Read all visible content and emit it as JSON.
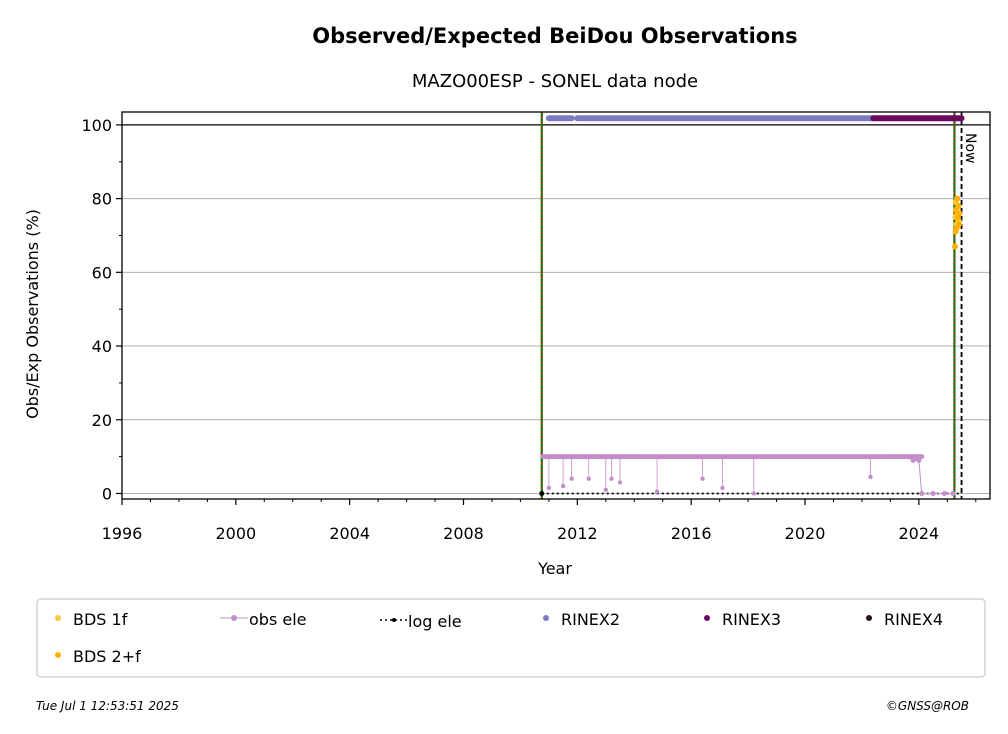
{
  "chart_data": {
    "type": "scatter",
    "title": "Observed/Expected BeiDou Observations",
    "subtitle": "MAZO00ESP - SONEL data node",
    "xlabel": "Year",
    "ylabel": "Obs/Exp Observations (%)",
    "xlim": [
      1996,
      2026.5
    ],
    "ylim": [
      -1.5,
      103.5
    ],
    "xticks": [
      "1996",
      "2000",
      "2004",
      "2008",
      "2012",
      "2016",
      "2020",
      "2024"
    ],
    "yticks": [
      "0",
      "20",
      "40",
      "60",
      "80",
      "100"
    ],
    "grid": "horizontal",
    "now_label": "Now",
    "vertical_lines": {
      "start_green": 2010.75,
      "start_red": 2010.75,
      "end_green": 2025.25,
      "end_red": 2025.25,
      "now": 2025.5
    },
    "series": [
      {
        "name": "BDS 1f",
        "color": "#ffca3a",
        "points": [
          [
            2025.28,
            75
          ],
          [
            2025.3,
            79
          ],
          [
            2025.32,
            73
          ],
          [
            2025.34,
            80
          ],
          [
            2025.36,
            76
          ],
          [
            2025.38,
            78
          ],
          [
            2025.4,
            74
          ]
        ]
      },
      {
        "name": "BDS 2+f",
        "color": "#ffb000",
        "points": [
          [
            2025.27,
            67
          ],
          [
            2025.29,
            71
          ],
          [
            2025.31,
            77
          ],
          [
            2025.33,
            72
          ],
          [
            2025.35,
            80
          ],
          [
            2025.37,
            75
          ],
          [
            2025.39,
            78
          ],
          [
            2025.41,
            73
          ],
          [
            2025.43,
            76
          ]
        ]
      },
      {
        "name": "obs ele",
        "color": "#c48ecb",
        "baseline": [
          2010.8,
          2024.1,
          10
        ],
        "drops": [
          [
            2011.0,
            1.5
          ],
          [
            2011.5,
            2
          ],
          [
            2011.8,
            4
          ],
          [
            2012.4,
            4
          ],
          [
            2013.0,
            1
          ],
          [
            2013.2,
            4
          ],
          [
            2013.5,
            3
          ],
          [
            2014.8,
            0.5
          ],
          [
            2016.4,
            4
          ],
          [
            2017.1,
            1.5
          ],
          [
            2018.2,
            0
          ],
          [
            2022.3,
            4.5
          ]
        ],
        "tail": [
          [
            2023.8,
            9
          ],
          [
            2024.0,
            9
          ],
          [
            2024.1,
            0
          ],
          [
            2024.5,
            0
          ],
          [
            2024.9,
            0
          ],
          [
            2025.2,
            0
          ]
        ]
      },
      {
        "name": "log ele",
        "color": "#000000",
        "line": [
          2010.75,
          2025.5,
          0
        ]
      },
      {
        "name": "RINEX2",
        "color": "#7b7bbf",
        "segments": [
          [
            2011.0,
            2011.8
          ],
          [
            2012.0,
            2022.4
          ]
        ],
        "y": 101.8
      },
      {
        "name": "RINEX3",
        "color": "#6a0a5e",
        "segments": [
          [
            2022.4,
            2025.5
          ]
        ],
        "y": 101.8
      },
      {
        "name": "RINEX4",
        "color": "#2a0a22",
        "segments": [],
        "y": 101.8
      }
    ],
    "legend": {
      "placement": "bottom",
      "entries": [
        "BDS 1f",
        "obs ele",
        "log ele",
        "RINEX2",
        "RINEX3",
        "RINEX4",
        "BDS 2+f"
      ]
    }
  },
  "footer": {
    "timestamp": "Tue Jul  1 12:53:51 2025",
    "credit": "©GNSS@ROB"
  }
}
